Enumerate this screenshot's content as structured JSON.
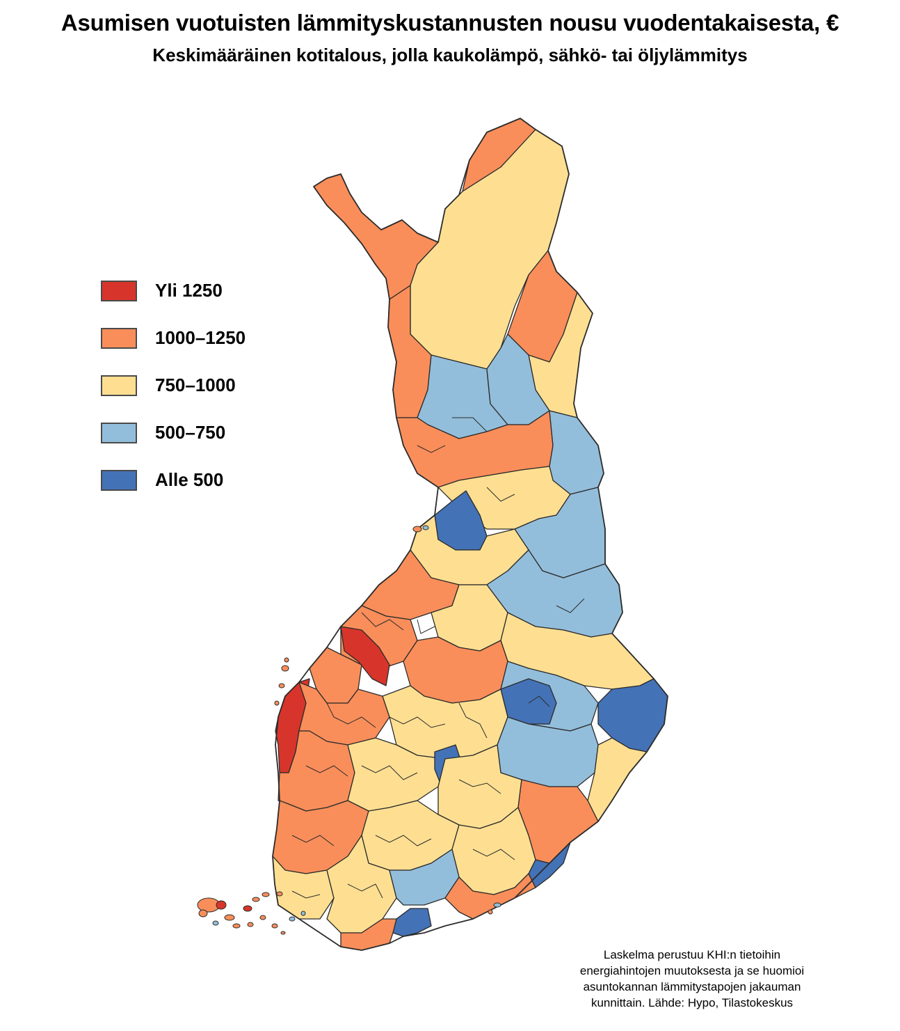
{
  "title": "Asumisen vuotuisten lämmityskustannusten nousu vuodentakaisesta, €",
  "subtitle": "Keskimääräinen kotitalous, jolla kaukolämpö, sähkö- tai öljylämmitys",
  "legend": {
    "items": [
      {
        "label": "Yli 1250",
        "color": "#d7352b"
      },
      {
        "label": "1000–1250",
        "color": "#f98e5a"
      },
      {
        "label": "750–1000",
        "color": "#fedf92"
      },
      {
        "label": "500–750",
        "color": "#93bedb"
      },
      {
        "label": "Alle 500",
        "color": "#4472b6"
      }
    ]
  },
  "source_note": {
    "lines": [
      "Laskelma perustuu KHI:n tietoihin",
      "energiahintojen muutoksesta ja se huomioi",
      "asuntokannan lämmitystapojen jakauman",
      "kunnittain. Lähde: Hypo, Tilastokeskus"
    ]
  },
  "map": {
    "border_color": "#2b2b2b",
    "region_classes": {
      "north_west_arm": "1000–1250",
      "north_east_cap": "1000–1250",
      "lapland_central": "750–1000",
      "lapland_east": "1000–1250",
      "kainuu_west": "500–750",
      "kainuu_east": "500–750",
      "oulu_region": "Alle 500",
      "ostrobothnia_coast": "Yli 1250",
      "karelia_north": "500–750",
      "karelia_south": "Alle 500",
      "southeast_coast": "Alle 500",
      "helsinki_region": "Alle 500"
    }
  }
}
